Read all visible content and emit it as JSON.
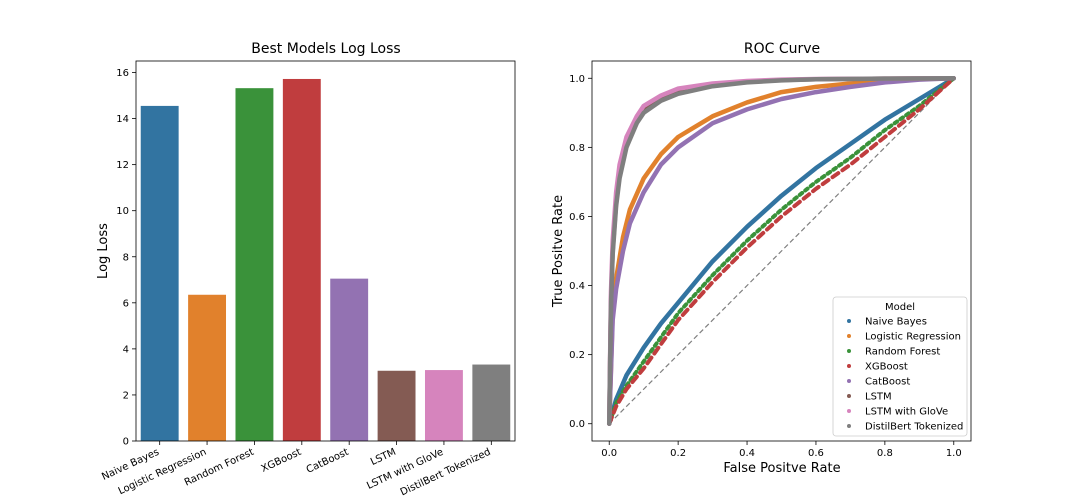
{
  "colors": {
    "Naive Bayes": "#3274a1",
    "Logistic Regression": "#e1812c",
    "Random Forest": "#3a923a",
    "XGBoost": "#c03d3e",
    "CatBoost": "#9372b2",
    "LSTM": "#845b53",
    "LSTM with GloVe": "#d684bd",
    "DistilBert Tokenized": "#7f7f7f"
  },
  "chart_data": [
    {
      "type": "bar",
      "title": "Best Models Log Loss",
      "xlabel": "",
      "ylabel": "Log Loss",
      "categories": [
        "Naive Bayes",
        "Logistic Regression",
        "Random Forest",
        "XGBoost",
        "CatBoost",
        "LSTM",
        "LSTM with GloVe",
        "DistilBert Tokenized"
      ],
      "values": [
        14.55,
        6.35,
        15.32,
        15.72,
        7.05,
        3.05,
        3.08,
        3.32
      ],
      "ylim": [
        0,
        16.5
      ],
      "yticks": [
        0,
        2,
        4,
        6,
        8,
        10,
        12,
        14,
        16
      ],
      "grid": false
    },
    {
      "type": "scatter",
      "title": "ROC Curve",
      "xlabel": "False Positve Rate",
      "ylabel": "True Positve Rate",
      "xlim": [
        -0.05,
        1.05
      ],
      "ylim": [
        -0.05,
        1.05
      ],
      "xticks": [
        0.0,
        0.2,
        0.4,
        0.6,
        0.8,
        1.0
      ],
      "yticks": [
        0.0,
        0.2,
        0.4,
        0.6,
        0.8,
        1.0
      ],
      "grid": false,
      "legend": {
        "title": "Model",
        "placement": "lower-right"
      },
      "diagonal": true,
      "series": [
        {
          "name": "Naive Bayes",
          "x": [
            0.0,
            0.02,
            0.05,
            0.1,
            0.15,
            0.2,
            0.3,
            0.4,
            0.5,
            0.6,
            0.7,
            0.8,
            0.9,
            1.0
          ],
          "y": [
            0.0,
            0.07,
            0.14,
            0.22,
            0.29,
            0.35,
            0.47,
            0.57,
            0.66,
            0.74,
            0.81,
            0.88,
            0.94,
            1.0
          ]
        },
        {
          "name": "Logistic Regression",
          "x": [
            0.0,
            0.01,
            0.02,
            0.04,
            0.06,
            0.1,
            0.15,
            0.2,
            0.3,
            0.4,
            0.5,
            0.6,
            0.7,
            0.8,
            0.9,
            1.0
          ],
          "y": [
            0.0,
            0.32,
            0.42,
            0.54,
            0.62,
            0.71,
            0.78,
            0.83,
            0.89,
            0.93,
            0.96,
            0.975,
            0.985,
            0.993,
            0.998,
            1.0
          ]
        },
        {
          "name": "Random Forest",
          "x": [
            0.0,
            0.02,
            0.05,
            0.1,
            0.15,
            0.2,
            0.3,
            0.4,
            0.5,
            0.6,
            0.7,
            0.8,
            0.9,
            1.0
          ],
          "y": [
            0.0,
            0.06,
            0.11,
            0.18,
            0.25,
            0.32,
            0.43,
            0.53,
            0.62,
            0.7,
            0.77,
            0.85,
            0.92,
            1.0
          ]
        },
        {
          "name": "XGBoost",
          "x": [
            0.0,
            0.02,
            0.05,
            0.1,
            0.15,
            0.2,
            0.3,
            0.4,
            0.5,
            0.6,
            0.7,
            0.8,
            0.9,
            1.0
          ],
          "y": [
            0.0,
            0.05,
            0.1,
            0.16,
            0.23,
            0.3,
            0.41,
            0.51,
            0.6,
            0.68,
            0.75,
            0.83,
            0.91,
            1.0
          ]
        },
        {
          "name": "CatBoost",
          "x": [
            0.0,
            0.01,
            0.02,
            0.04,
            0.06,
            0.1,
            0.15,
            0.2,
            0.3,
            0.4,
            0.5,
            0.6,
            0.7,
            0.8,
            0.9,
            1.0
          ],
          "y": [
            0.0,
            0.3,
            0.39,
            0.5,
            0.58,
            0.67,
            0.75,
            0.8,
            0.87,
            0.91,
            0.94,
            0.96,
            0.975,
            0.988,
            0.996,
            1.0
          ]
        },
        {
          "name": "LSTM",
          "x": [
            0.0,
            0.005,
            0.01,
            0.02,
            0.03,
            0.05,
            0.08,
            0.1,
            0.15,
            0.2,
            0.3,
            0.4,
            0.5,
            0.6,
            0.8,
            1.0
          ],
          "y": [
            0.0,
            0.35,
            0.5,
            0.64,
            0.72,
            0.81,
            0.88,
            0.91,
            0.94,
            0.96,
            0.98,
            0.99,
            0.995,
            0.997,
            0.999,
            1.0
          ]
        },
        {
          "name": "LSTM with GloVe",
          "x": [
            0.0,
            0.005,
            0.01,
            0.02,
            0.03,
            0.05,
            0.08,
            0.1,
            0.15,
            0.2,
            0.3,
            0.4,
            0.5,
            0.6,
            0.8,
            1.0
          ],
          "y": [
            0.0,
            0.38,
            0.53,
            0.67,
            0.75,
            0.83,
            0.89,
            0.92,
            0.95,
            0.97,
            0.985,
            0.992,
            0.996,
            0.998,
            0.999,
            1.0
          ]
        },
        {
          "name": "DistilBert Tokenized",
          "x": [
            0.0,
            0.005,
            0.01,
            0.02,
            0.03,
            0.05,
            0.08,
            0.1,
            0.15,
            0.2,
            0.3,
            0.4,
            0.5,
            0.6,
            0.8,
            1.0
          ],
          "y": [
            0.0,
            0.34,
            0.49,
            0.63,
            0.71,
            0.8,
            0.87,
            0.9,
            0.935,
            0.955,
            0.977,
            0.988,
            0.994,
            0.997,
            0.999,
            1.0
          ]
        }
      ]
    }
  ]
}
